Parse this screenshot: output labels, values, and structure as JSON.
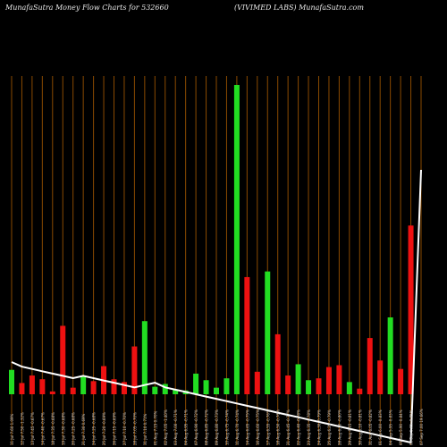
{
  "header": {
    "left": "MunafaSutra  Money Flow  Charts for 532660",
    "right": "(VIVIMED LABS) MunafaSutra.com"
  },
  "colors": {
    "background": "#000000",
    "up": "#22dd22",
    "down": "#ee1111",
    "gridline": "#8a4a00",
    "price_line": "#ffffff",
    "tick_text": "#cccccc"
  },
  "chart_data": {
    "type": "bar",
    "title": "",
    "xlabel": "",
    "ylabel": "",
    "grid": true,
    "categories": [
      "11 Jul 7.60 1.09%",
      "12 Jul 7.50 -1.32%",
      "13 Jul 7.45 -0.67%",
      "14 Jul 7.40 -0.67%",
      "18 Jul 7.35 -0.68%",
      "19 Jul 7.30 -0.68%",
      "20 Jul 7.25 -0.68%",
      "21 Jul 7.30 0.69%",
      "24 Jul 7.25 -0.68%",
      "25 Jul 7.20 -0.69%",
      "26 Jul 7.15 -0.69%",
      "27 Jul 7.10 -0.70%",
      "28 Jul 7.05 -0.70%",
      "31 Jul 7.10 0.71%",
      "01 Aug 7.15 0.70%",
      "02 Aug 7.05 -1.40%",
      "03 Aug 7.00 -0.71%",
      "04 Aug 6.95 -0.71%",
      "07 Aug 6.90 -0.72%",
      "08 Aug 6.85 -0.72%",
      "09 Aug 6.80 -0.73%",
      "10 Aug 6.75 -0.74%",
      "11 Aug 6.70 -0.74%",
      "14 Aug 6.65 -0.75%",
      "16 Aug 6.60 -0.75%",
      "17 Aug 6.55 -0.76%",
      "18 Aug 6.50 -0.76%",
      "21 Aug 6.45 -0.77%",
      "22 Aug 6.40 -0.78%",
      "23 Aug 6.35 -0.78%",
      "24 Aug 6.30 -0.79%",
      "25 Aug 6.25 -0.79%",
      "28 Aug 6.20 -0.80%",
      "29 Aug 6.15 -0.81%",
      "30 Aug 6.10 -0.81%",
      "31 Aug 6.05 -0.82%",
      "01 Sep 6.00 -0.83%",
      "04 Sep 5.95 -0.83%",
      "05 Sep 5.90 -0.84%",
      "06 Sep 5.85 -0.85%",
      "07 Sep 7.00 19.66%"
    ],
    "values": [
      26,
      12,
      20,
      16,
      3,
      73,
      7,
      19,
      14,
      30,
      16,
      13,
      51,
      78,
      8,
      11,
      5,
      4,
      22,
      15,
      7,
      17,
      330,
      125,
      24,
      131,
      64,
      20,
      32,
      15,
      17,
      29,
      31,
      13,
      6,
      60,
      36,
      82,
      27,
      180,
      0
    ],
    "colors": [
      "up",
      "down",
      "down",
      "down",
      "down",
      "down",
      "down",
      "up",
      "down",
      "down",
      "down",
      "down",
      "down",
      "up",
      "up",
      "up",
      "up",
      "up",
      "up",
      "up",
      "up",
      "up",
      "up",
      "down",
      "down",
      "up",
      "down",
      "down",
      "up",
      "up",
      "down",
      "down",
      "down",
      "up",
      "down",
      "down",
      "down",
      "up",
      "down",
      "down",
      "down"
    ],
    "price": [
      7.6,
      7.5,
      7.45,
      7.4,
      7.35,
      7.3,
      7.25,
      7.3,
      7.25,
      7.2,
      7.15,
      7.1,
      7.05,
      7.1,
      7.15,
      7.05,
      7.0,
      6.95,
      6.9,
      6.85,
      6.8,
      6.75,
      6.7,
      6.65,
      6.6,
      6.55,
      6.5,
      6.45,
      6.4,
      6.35,
      6.3,
      6.25,
      6.2,
      6.15,
      6.1,
      6.05,
      6.0,
      5.95,
      5.9,
      5.85,
      7.0
    ]
  }
}
